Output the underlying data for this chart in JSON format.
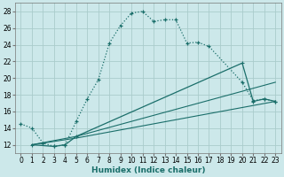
{
  "xlabel": "Humidex (Indice chaleur)",
  "background_color": "#cce8ea",
  "grid_color": "#aacccc",
  "line_color": "#1a6e6a",
  "xlim": [
    -0.5,
    23.5
  ],
  "ylim": [
    11,
    29
  ],
  "xticks": [
    0,
    1,
    2,
    3,
    4,
    5,
    6,
    7,
    8,
    9,
    10,
    11,
    12,
    13,
    14,
    15,
    16,
    17,
    18,
    19,
    20,
    21,
    22,
    23
  ],
  "yticks": [
    12,
    14,
    16,
    18,
    20,
    22,
    24,
    26,
    28
  ],
  "series": [
    {
      "x": [
        0,
        1,
        2,
        3,
        4,
        5,
        6,
        7,
        8,
        9,
        10,
        11,
        12,
        13,
        14,
        15,
        16,
        17,
        20,
        21,
        22,
        23
      ],
      "y": [
        14.5,
        14.0,
        12.2,
        11.8,
        12.0,
        14.8,
        17.5,
        19.8,
        24.2,
        26.3,
        27.8,
        28.0,
        26.8,
        27.0,
        27.0,
        24.2,
        24.3,
        23.8,
        19.5,
        17.3,
        17.5,
        17.2
      ],
      "linestyle": "--",
      "marker": true
    },
    {
      "x": [
        1,
        3,
        4,
        5,
        20,
        21,
        22,
        23
      ],
      "y": [
        12.0,
        11.8,
        12.0,
        13.0,
        21.8,
        17.2,
        17.5,
        17.2
      ],
      "linestyle": "-",
      "marker": true
    },
    {
      "x": [
        1,
        5,
        23
      ],
      "y": [
        12.0,
        13.0,
        19.5
      ],
      "linestyle": "-",
      "marker": false
    },
    {
      "x": [
        1,
        5,
        23
      ],
      "y": [
        12.0,
        12.8,
        17.2
      ],
      "linestyle": "-",
      "marker": false
    }
  ]
}
